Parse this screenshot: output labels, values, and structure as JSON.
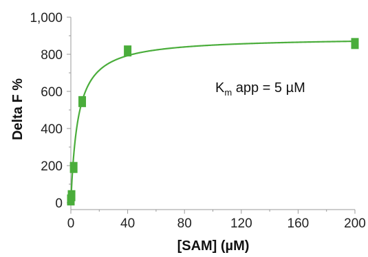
{
  "chart_data": {
    "type": "scatter",
    "xlabel": "[SAM] (µM)",
    "ylabel": "Delta F %",
    "xlim": [
      0,
      200
    ],
    "ylim": [
      0,
      1000
    ],
    "x_ticks": [
      0,
      40,
      80,
      120,
      160,
      200
    ],
    "y_ticks": [
      0,
      200,
      400,
      600,
      800,
      1000
    ],
    "x_tick_labels": [
      "0",
      "40",
      "80",
      "120",
      "160",
      "200"
    ],
    "y_tick_labels": [
      "0",
      "200",
      "400",
      "600",
      "800",
      "1,000"
    ],
    "series": [
      {
        "x": [
          0,
          0.5,
          2,
          8,
          40,
          200
        ],
        "y": [
          15,
          38,
          190,
          545,
          818,
          858
        ],
        "color": "#4aad3b"
      }
    ],
    "fit_curve": {
      "model": "Michaelis-Menten",
      "vmax": 892,
      "km": 5,
      "color": "#4aad3b"
    },
    "annotation": {
      "main": "K",
      "subscript": "m",
      "rest": " app = 5 µM"
    },
    "grid": false,
    "marker_color": "#4aad3b"
  }
}
